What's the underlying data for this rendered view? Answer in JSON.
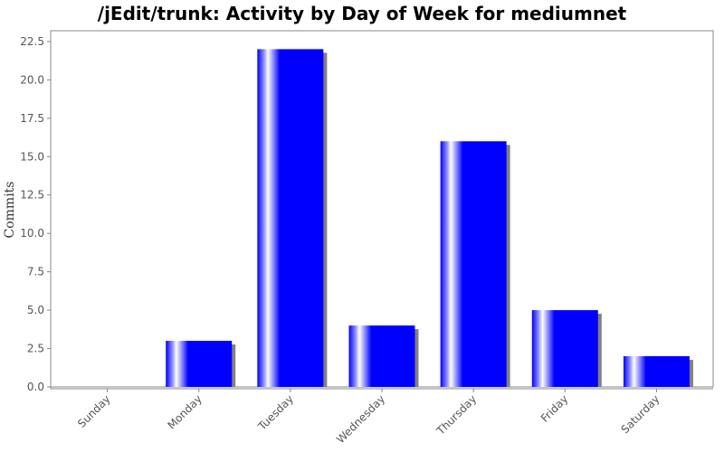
{
  "chart_data": {
    "type": "bar",
    "title": "/jEdit/trunk: Activity by Day of Week for mediumnet",
    "xlabel": "",
    "ylabel": "Commits",
    "categories": [
      "Sunday",
      "Monday",
      "Tuesday",
      "Wednesday",
      "Thursday",
      "Friday",
      "Saturday"
    ],
    "values": [
      0,
      3,
      22,
      4,
      16,
      5,
      2
    ],
    "ylim": [
      0,
      23.2
    ],
    "yticks": [
      "0.0",
      "2.5",
      "5.0",
      "7.5",
      "10.0",
      "12.5",
      "15.0",
      "17.5",
      "20.0",
      "22.5"
    ],
    "grid": false,
    "legend": "none",
    "colors": {
      "bar": "#0000ff",
      "bar_highlight": "#ffffff",
      "shadow": "#808080",
      "axis": "#888888",
      "plot_border": "#888888",
      "background": "#ffffff"
    }
  }
}
